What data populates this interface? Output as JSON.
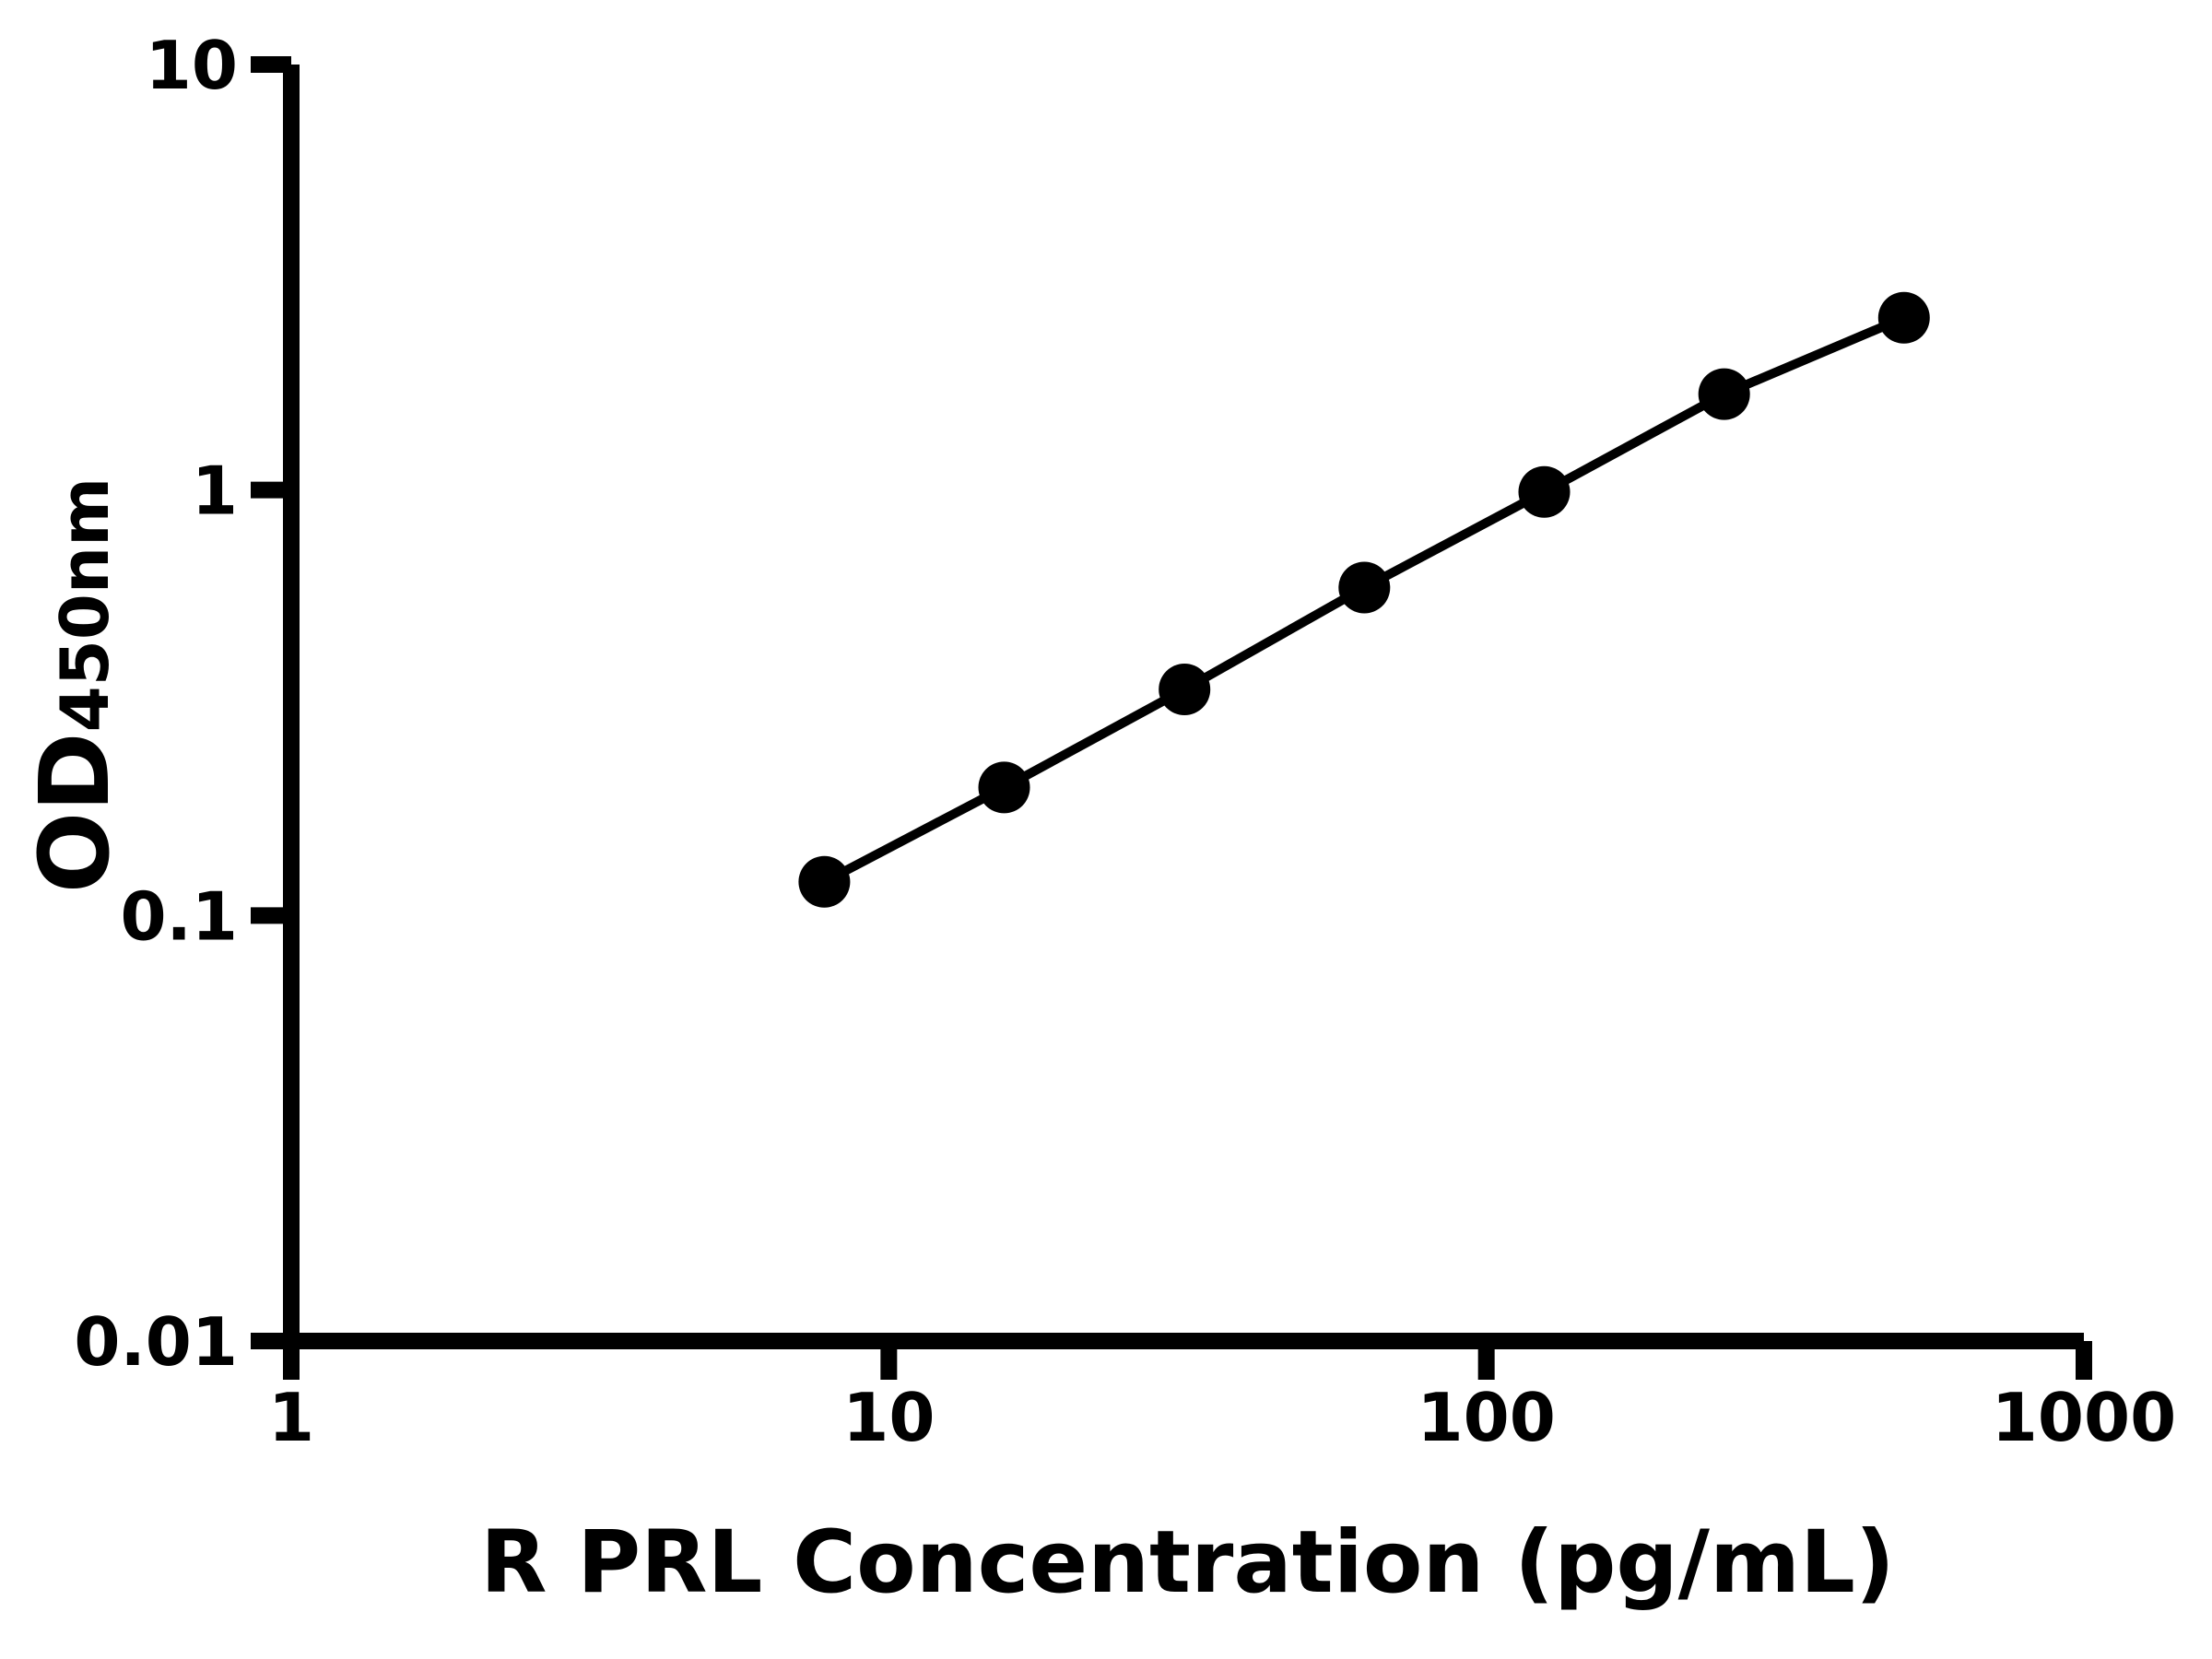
{
  "chart_data": {
    "type": "line",
    "title": "",
    "xlabel": "R PRL Concentration (pg/mL)",
    "ylabel": "OD",
    "ylabel_subscript": "450nm",
    "xscale": "log",
    "yscale": "log",
    "xlim": [
      1,
      1000
    ],
    "ylim": [
      0.01,
      10
    ],
    "xticks": [
      "1",
      "10",
      "100",
      "1000"
    ],
    "yticks": [
      "0.01",
      "0.1",
      "1",
      "10"
    ],
    "grid": false,
    "legend": null,
    "marker": "filled-circle",
    "line_color": "#000000",
    "marker_color": "#000000",
    "axis_color": "#000000",
    "background_color": "#ffffff",
    "series": [
      {
        "x": [
          7.8,
          15.6,
          31.25,
          62.5,
          125,
          250,
          500
        ],
        "y": [
          0.12,
          0.2,
          0.34,
          0.59,
          0.99,
          1.68,
          2.54
        ]
      }
    ]
  }
}
